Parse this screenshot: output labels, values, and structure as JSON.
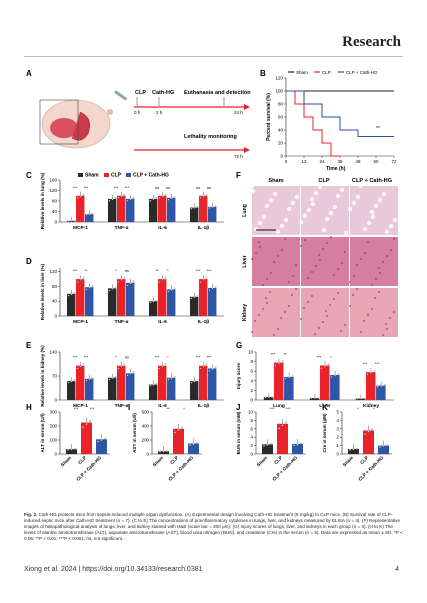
{
  "header": {
    "journal": "Research"
  },
  "panelA": {
    "label": "A",
    "timeline": [
      "CLP",
      "Cath-HG",
      "Euthanasia and detection",
      "0 h",
      "2 h",
      "24 h",
      "Lethality monitoring",
      "72 h"
    ]
  },
  "panelB": {
    "label": "B",
    "chart_data": {
      "type": "line",
      "title": "",
      "xlabel": "Time (h)",
      "ylabel": "Percent survival (%)",
      "xticks": [
        "0",
        "12",
        "24",
        "36",
        "48",
        "60",
        "72"
      ],
      "yticks": [
        "0",
        "20",
        "40",
        "60",
        "80",
        "100",
        "120"
      ],
      "xlim": [
        0,
        72
      ],
      "ylim": [
        0,
        120
      ],
      "legend": [
        "Sham",
        "CLP",
        "CLP + Cath-HG"
      ],
      "series": [
        {
          "name": "Sham",
          "color": "#222222",
          "points": [
            [
              0,
              100
            ],
            [
              72,
              100
            ]
          ]
        },
        {
          "name": "CLP",
          "color": "#e8232a",
          "points": [
            [
              0,
              100
            ],
            [
              6,
              100
            ],
            [
              6,
              80
            ],
            [
              12,
              80
            ],
            [
              12,
              60
            ],
            [
              18,
              60
            ],
            [
              18,
              40
            ],
            [
              24,
              40
            ],
            [
              24,
              20
            ],
            [
              30,
              20
            ],
            [
              30,
              0
            ],
            [
              36,
              0
            ]
          ]
        },
        {
          "name": "CLP + Cath-HG",
          "color": "#2b4ea2",
          "points": [
            [
              0,
              100
            ],
            [
              12,
              100
            ],
            [
              12,
              80
            ],
            [
              24,
              80
            ],
            [
              24,
              60
            ],
            [
              36,
              60
            ],
            [
              36,
              40
            ],
            [
              48,
              40
            ],
            [
              48,
              30
            ],
            [
              72,
              30
            ]
          ]
        }
      ],
      "annotations": [
        "**"
      ]
    }
  },
  "barPanels": {
    "C": {
      "label": "C",
      "ylabel": "Relative levels in lung (%)",
      "yticks": [
        "0",
        "40",
        "80",
        "120",
        "160"
      ],
      "chart_data": {
        "type": "bar",
        "categories": [
          "MCP-1",
          "TNF-α",
          "IL-6",
          "IL-1β"
        ],
        "ylim": [
          0,
          160
        ],
        "series": [
          {
            "name": "Sham",
            "values": [
              4,
              88,
              88,
              55
            ]
          },
          {
            "name": "CLP",
            "values": [
              100,
              100,
              100,
              100
            ]
          },
          {
            "name": "CLP + Cath-HG",
            "values": [
              30,
              88,
              92,
              58
            ]
          }
        ]
      },
      "sig": [
        "***",
        "***",
        "***",
        "***",
        "ns",
        "ns",
        "ns",
        "ns"
      ]
    },
    "D": {
      "label": "D",
      "ylabel": "Relative levels in liver (%)",
      "yticks": [
        "0",
        "40",
        "80",
        "120"
      ],
      "chart_data": {
        "type": "bar",
        "categories": [
          "MCP-1",
          "TNF-α",
          "IL-6",
          "IL-1β"
        ],
        "ylim": [
          0,
          130
        ],
        "series": [
          {
            "name": "Sham",
            "values": [
              60,
              75,
              40,
              52
            ]
          },
          {
            "name": "CLP",
            "values": [
              100,
              100,
              100,
              100
            ]
          },
          {
            "name": "CLP + Cath-HG",
            "values": [
              78,
              90,
              72,
              76
            ]
          }
        ]
      },
      "sig": [
        "***",
        "**",
        "*",
        "ns",
        "**",
        "*",
        "***",
        "***"
      ]
    },
    "E": {
      "label": "E",
      "ylabel": "Relative levels in kidney (%)",
      "yticks": [
        "0",
        "70",
        "140"
      ],
      "chart_data": {
        "type": "bar",
        "categories": [
          "MCP-1",
          "TNF-α",
          "IL-6",
          "IL-1β"
        ],
        "ylim": [
          0,
          140
        ],
        "series": [
          {
            "name": "Sham",
            "values": [
              55,
              65,
              45,
              55
            ]
          },
          {
            "name": "CLP",
            "values": [
              100,
              100,
              100,
              100
            ]
          },
          {
            "name": "CLP + Cath-HG",
            "values": [
              62,
              78,
              65,
              92
            ]
          }
        ]
      },
      "sig": [
        "***",
        "***",
        "*",
        "ns",
        "***",
        "*",
        "***",
        "***"
      ]
    },
    "G": {
      "label": "G",
      "ylabel": "Injury score",
      "yticks": [
        "0",
        "2",
        "4",
        "6",
        "8",
        "10"
      ],
      "chart_data": {
        "type": "bar",
        "categories": [
          "Lung",
          "Liver",
          "Kidney"
        ],
        "ylim": [
          0,
          10
        ],
        "series": [
          {
            "name": "Sham",
            "values": [
              0.6,
              0.4,
              0.3
            ]
          },
          {
            "name": "CLP",
            "values": [
              7.8,
              7.2,
              5.8
            ]
          },
          {
            "name": "CLP + Cath-HG",
            "values": [
              4.8,
              5.2,
              3.0
            ]
          }
        ]
      },
      "sig": [
        "***",
        "**",
        "***",
        "*",
        "***",
        "***"
      ]
    }
  },
  "smallPanels": {
    "H": {
      "label": "H",
      "ylabel": "ALT in serum (U/l)",
      "yticks": [
        "0",
        "100",
        "200",
        "300"
      ],
      "ylim": [
        0,
        300
      ],
      "values": [
        35,
        225,
        105
      ],
      "sig": [
        "***",
        "***"
      ]
    },
    "I": {
      "label": "I",
      "ylabel": "AST in serum (U/l)",
      "yticks": [
        "0",
        "200",
        "400",
        "600"
      ],
      "ylim": [
        0,
        600
      ],
      "values": [
        40,
        360,
        150
      ],
      "sig": [
        "**",
        "*"
      ]
    },
    "J": {
      "label": "J",
      "ylabel": "BUN in serum (mM)",
      "yticks": [
        "0",
        "2",
        "4",
        "6",
        "8",
        "10"
      ],
      "ylim": [
        0,
        10
      ],
      "values": [
        2.3,
        7.2,
        2.4
      ],
      "sig": [
        "***",
        "***"
      ]
    },
    "K": {
      "label": "K",
      "ylabel": "Cre in serum (μM)",
      "yticks": [
        "0",
        "1",
        "2",
        "3",
        "4",
        "5"
      ],
      "ylim": [
        0,
        5
      ],
      "values": [
        0.6,
        2.8,
        1.0
      ],
      "sig": [
        "*",
        "*"
      ]
    },
    "groups": [
      "Sham",
      "CLP",
      "CLP + Cath-HG"
    ]
  },
  "legend": [
    "Sham",
    "CLP",
    "CLP + Cath-HG"
  ],
  "panelF": {
    "label": "F",
    "cols": [
      "Sham",
      "CLP",
      "CLP + Cath-HG"
    ],
    "rows": [
      "Lung",
      "Liver",
      "Kidney"
    ]
  },
  "colors": {
    "sham": "#2a2a2a",
    "clp": "#e8232a",
    "cath": "#2f56a6"
  },
  "caption": {
    "lead": "Fig. 2.",
    "text": "Cath-HG protects mice from sepsis-induced multiple organ dysfunction. (A) Experimental design involving Cath-HG treatment (5 mg/kg) to CLP mice. (B) Survival rate of CLP-induced septic mice after Cath-HG treatment (n = 7). (C to E) The concentrations of proinflammatory cytokines in lungs, liver, and kidneys measured by ELISA (n = 4). (F) Representative images of histopathological analysis of lungs, liver, and kidney stained with H&E (scale bar = 200 μm). (G) Injury scores of lungs, liver, and kidneys in each group (n = 4). (H to K) The levels of alanine aminotransferase (ALT), aspartate aminotransferase (AST), blood urea nitrogen (BUN), and creatinine (Cre) in the serum (n = 5). Data are expressed as mean ± SD. *P < 0.05; **P < 0.01; ***P < 0.001; ns, not significant."
  },
  "footer": {
    "citation": "Xiong et al. 2024 | https://doi.org/10.34133/research.0381",
    "page": "4"
  }
}
